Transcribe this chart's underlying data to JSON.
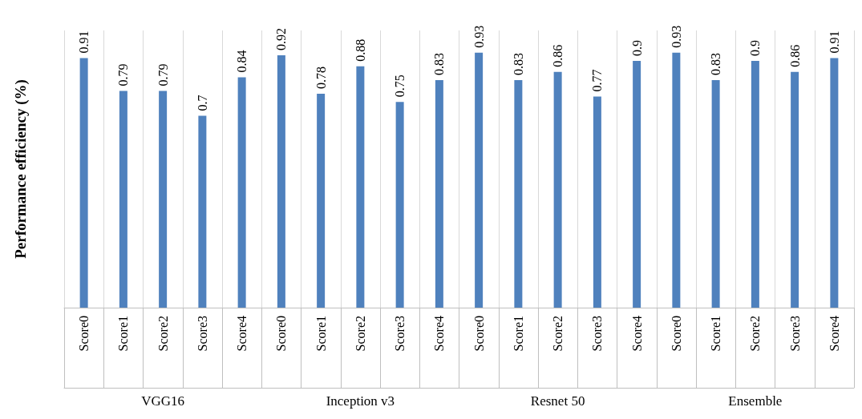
{
  "chart_data": {
    "type": "bar",
    "ylabel": "Performance efficiency (%)",
    "categories": [
      "Score0",
      "Score1",
      "Score2",
      "Score3",
      "Score4",
      "Score0",
      "Score1",
      "Score2",
      "Score3",
      "Score4",
      "Score0",
      "Score1",
      "Score2",
      "Score3",
      "Score4",
      "Score0",
      "Score1",
      "Score2",
      "Score3",
      "Score4"
    ],
    "values": [
      0.91,
      0.79,
      0.79,
      0.7,
      0.84,
      0.92,
      0.78,
      0.88,
      0.75,
      0.83,
      0.93,
      0.83,
      0.86,
      0.77,
      0.9,
      0.93,
      0.83,
      0.9,
      0.86,
      0.91
    ],
    "color": "#4f81bd",
    "annotations": [
      "VGG16",
      "Inception v3",
      "Resnet 50",
      "Ensemble"
    ],
    "data_labels": true,
    "grid": "x",
    "tick_labels": "x"
  }
}
